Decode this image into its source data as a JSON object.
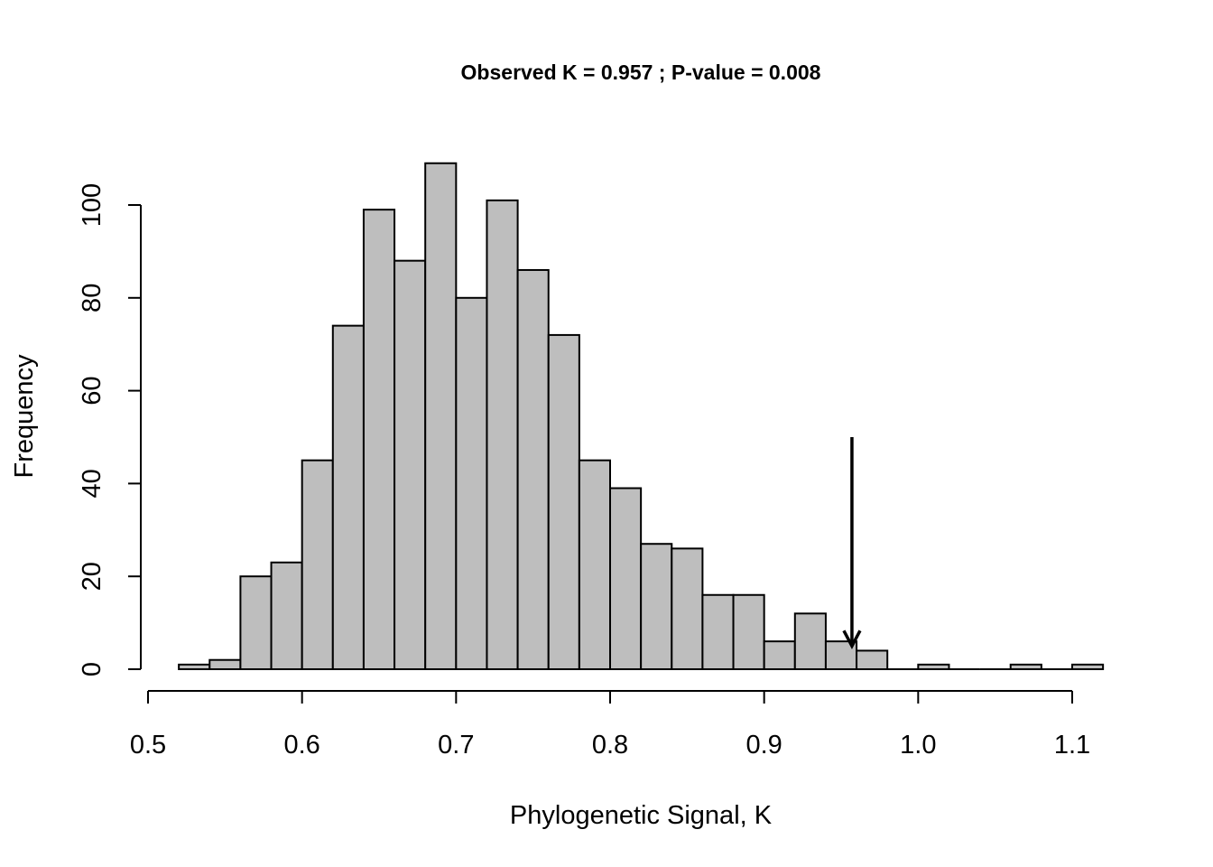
{
  "chart_data": {
    "type": "histogram",
    "title": "Observed K = 0.957 ; P-value = 0.008",
    "xlabel": "Phylogenetic Signal, K",
    "ylabel": "Frequency",
    "bin_width": 0.02,
    "bins": [
      {
        "from": 0.52,
        "to": 0.54,
        "count": 1
      },
      {
        "from": 0.54,
        "to": 0.56,
        "count": 2
      },
      {
        "from": 0.56,
        "to": 0.58,
        "count": 20
      },
      {
        "from": 0.58,
        "to": 0.6,
        "count": 23
      },
      {
        "from": 0.6,
        "to": 0.62,
        "count": 45
      },
      {
        "from": 0.62,
        "to": 0.64,
        "count": 74
      },
      {
        "from": 0.64,
        "to": 0.66,
        "count": 99
      },
      {
        "from": 0.66,
        "to": 0.68,
        "count": 88
      },
      {
        "from": 0.68,
        "to": 0.7,
        "count": 109
      },
      {
        "from": 0.7,
        "to": 0.72,
        "count": 80
      },
      {
        "from": 0.72,
        "to": 0.74,
        "count": 101
      },
      {
        "from": 0.74,
        "to": 0.76,
        "count": 86
      },
      {
        "from": 0.76,
        "to": 0.78,
        "count": 72
      },
      {
        "from": 0.78,
        "to": 0.8,
        "count": 45
      },
      {
        "from": 0.8,
        "to": 0.82,
        "count": 39
      },
      {
        "from": 0.82,
        "to": 0.84,
        "count": 27
      },
      {
        "from": 0.84,
        "to": 0.86,
        "count": 26
      },
      {
        "from": 0.86,
        "to": 0.88,
        "count": 16
      },
      {
        "from": 0.88,
        "to": 0.9,
        "count": 16
      },
      {
        "from": 0.9,
        "to": 0.92,
        "count": 6
      },
      {
        "from": 0.92,
        "to": 0.94,
        "count": 12
      },
      {
        "from": 0.94,
        "to": 0.96,
        "count": 6
      },
      {
        "from": 0.96,
        "to": 0.98,
        "count": 4
      },
      {
        "from": 0.98,
        "to": 1.0,
        "count": 0
      },
      {
        "from": 1.0,
        "to": 1.02,
        "count": 1
      },
      {
        "from": 1.02,
        "to": 1.04,
        "count": 0
      },
      {
        "from": 1.04,
        "to": 1.06,
        "count": 0
      },
      {
        "from": 1.06,
        "to": 1.08,
        "count": 1
      },
      {
        "from": 1.08,
        "to": 1.1,
        "count": 0
      },
      {
        "from": 1.1,
        "to": 1.12,
        "count": 1
      }
    ],
    "xlim": [
      0.5,
      1.12
    ],
    "ylim": [
      0,
      109
    ],
    "x_ticks": [
      "0.5",
      "0.6",
      "0.7",
      "0.8",
      "0.9",
      "1.0",
      "1.1"
    ],
    "y_ticks": [
      "0",
      "20",
      "40",
      "60",
      "80",
      "100"
    ],
    "observed_marker": {
      "x": 0.957,
      "arrow_from_y": 50,
      "arrow_to_y": 5
    },
    "bar_color": "#bebebe",
    "edge_color": "#000000",
    "grid": false,
    "legend": "none"
  }
}
